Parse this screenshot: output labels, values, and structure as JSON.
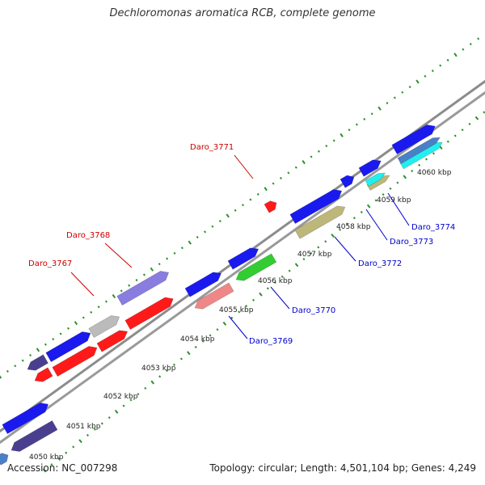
{
  "header": {
    "title": "Dechloromonas aromatica RCB, complete genome"
  },
  "footer": {
    "accession": "Accession: NC_007298",
    "summary": "Topology: circular; Length: 4,501,104 bp; Genes: 4,249"
  },
  "colors": {
    "backbone": "#8c8c8c",
    "tick_green": "#2f8f2f",
    "label_red": "#cc0000",
    "label_blue": "#0000cc",
    "ruler_text": "#222222",
    "gene_blue": "#1a1aee",
    "gene_red": "#ff1a1a",
    "gene_darkpurple": "#4a3f8f",
    "gene_lavender": "#8a7de0",
    "gene_gray": "#bbbbbb",
    "gene_pink": "#ee8888",
    "gene_green": "#33cc33",
    "gene_khaki": "#bdb77a",
    "gene_cyan": "#22eeee",
    "gene_steelblue": "#4a80c8"
  },
  "ruler": {
    "labels": [
      "4050 kbp",
      "4051 kbp",
      "4052 kbp",
      "4053 kbp",
      "4054 kbp",
      "4055 kbp",
      "4056 kbp",
      "4057 kbp",
      "4058 kbp",
      "4059 kbp",
      "4060 kbp"
    ]
  },
  "gene_labels": {
    "red": [
      "Daro_3771",
      "Daro_3768",
      "Daro_3767"
    ],
    "blue": [
      "Daro_3769",
      "Daro_3770",
      "Daro_3772",
      "Daro_3773",
      "Daro_3774"
    ]
  }
}
